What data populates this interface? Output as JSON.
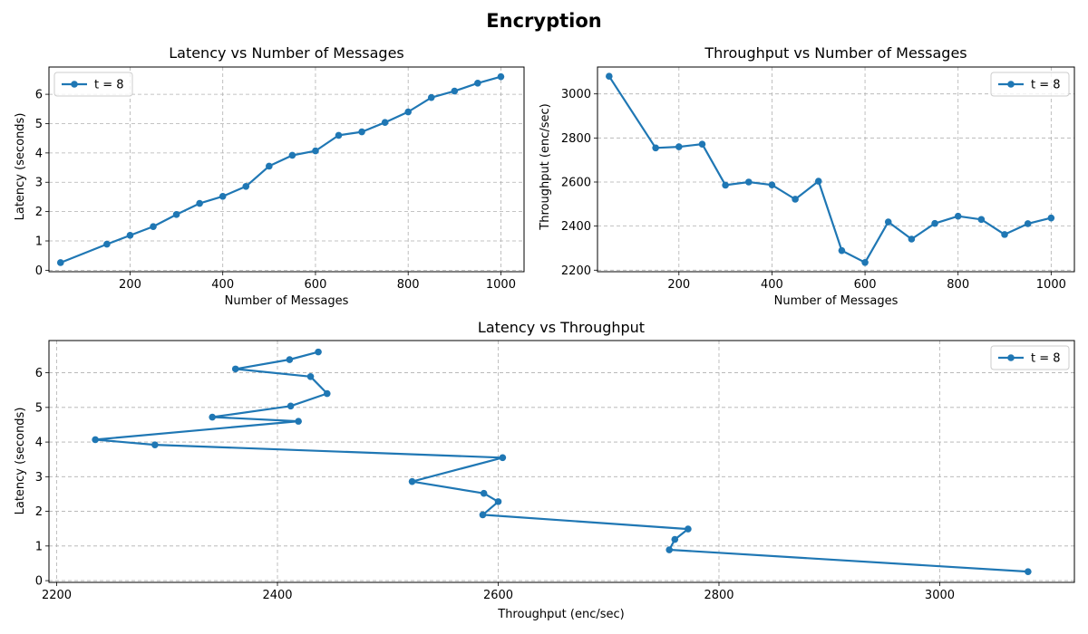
{
  "figure": {
    "suptitle": "Encryption"
  },
  "colors": {
    "series": "#1f77b4"
  },
  "chart_data": [
    {
      "type": "line",
      "title": "Latency vs Number of Messages",
      "xlabel": "Number of Messages",
      "ylabel": "Latency (seconds)",
      "xlim": [
        25,
        1050
      ],
      "ylim": [
        -0.05,
        6.93
      ],
      "xticks": [
        200,
        400,
        600,
        800,
        1000
      ],
      "yticks": [
        0,
        1,
        2,
        3,
        4,
        5,
        6
      ],
      "grid": true,
      "legend": "top-left",
      "series": [
        {
          "name": "t = 8",
          "x": [
            50,
            150,
            200,
            250,
            300,
            350,
            400,
            450,
            500,
            550,
            600,
            650,
            700,
            750,
            800,
            850,
            900,
            950,
            1000
          ],
          "y": [
            0.26,
            0.89,
            1.19,
            1.49,
            1.9,
            2.28,
            2.52,
            2.86,
            3.55,
            3.92,
            4.07,
            4.6,
            4.72,
            5.04,
            5.4,
            5.89,
            6.11,
            6.38,
            6.6
          ]
        }
      ]
    },
    {
      "type": "line",
      "title": "Throughput vs Number of Messages",
      "xlabel": "Number of Messages",
      "ylabel": "Throughput (enc/sec)",
      "xlim": [
        25,
        1050
      ],
      "ylim": [
        2193,
        3122
      ],
      "xticks": [
        200,
        400,
        600,
        800,
        1000
      ],
      "yticks": [
        2200,
        2400,
        2600,
        2800,
        3000
      ],
      "grid": true,
      "legend": "top-right",
      "series": [
        {
          "name": "t = 8",
          "x": [
            50,
            150,
            200,
            250,
            300,
            350,
            400,
            450,
            500,
            550,
            600,
            650,
            700,
            750,
            800,
            850,
            900,
            950,
            1000
          ],
          "y": [
            3080,
            2755,
            2760,
            2772,
            2586,
            2600,
            2587,
            2522,
            2604,
            2289,
            2235,
            2419,
            2341,
            2412,
            2445,
            2430,
            2362,
            2411,
            2437
          ]
        }
      ]
    },
    {
      "type": "line",
      "title": "Latency vs Throughput",
      "xlabel": "Throughput (enc/sec)",
      "ylabel": "Latency (seconds)",
      "xlim": [
        2193,
        3122
      ],
      "ylim": [
        -0.05,
        6.93
      ],
      "xticks": [
        2200,
        2400,
        2600,
        2800,
        3000
      ],
      "yticks": [
        0,
        1,
        2,
        3,
        4,
        5,
        6
      ],
      "grid": true,
      "legend": "top-right",
      "series": [
        {
          "name": "t = 8",
          "x": [
            3080,
            2755,
            2760,
            2772,
            2586,
            2600,
            2587,
            2522,
            2604,
            2289,
            2235,
            2419,
            2341,
            2412,
            2445,
            2430,
            2362,
            2411,
            2437
          ],
          "y": [
            0.26,
            0.89,
            1.19,
            1.49,
            1.9,
            2.28,
            2.52,
            2.86,
            3.55,
            3.92,
            4.07,
            4.6,
            4.72,
            5.04,
            5.4,
            5.89,
            6.11,
            6.38,
            6.6
          ]
        }
      ]
    }
  ]
}
